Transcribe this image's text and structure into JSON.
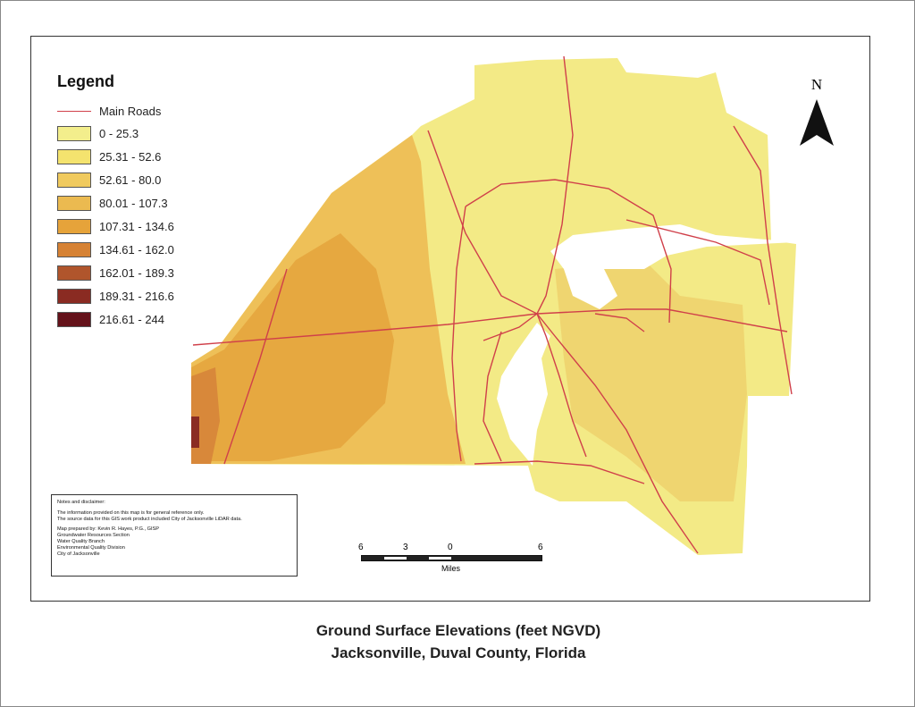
{
  "legend": {
    "title": "Legend",
    "roads_label": "Main Roads",
    "road_color": "#d0404a",
    "classes": [
      {
        "label": "0 - 25.3",
        "color": "#f3ee8c"
      },
      {
        "label": "25.31 - 52.6",
        "color": "#f4e36e"
      },
      {
        "label": "52.61 - 80.0",
        "color": "#f0ca5e"
      },
      {
        "label": "80.01 - 107.3",
        "color": "#ebba50"
      },
      {
        "label": "107.31 - 134.6",
        "color": "#e6a33a"
      },
      {
        "label": "134.61 - 162.0",
        "color": "#d68234"
      },
      {
        "label": "162.01 - 189.3",
        "color": "#b0552c"
      },
      {
        "label": "189.31 - 216.6",
        "color": "#8a2b22"
      },
      {
        "label": "216.61 - 244",
        "color": "#64121a"
      }
    ]
  },
  "notes": {
    "heading": "Notes and disclaimer:",
    "line1": "The information provided on this map is for general reference only.",
    "line2": "The source data for this GIS work product included City of Jacksonville LiDAR data.",
    "prepared": [
      "Map prepared by: Kevin R. Hayes, P.G., GISP",
      "Groundwater Resources Section",
      "Water Quality Branch",
      "Environmental Quality Division",
      "City of Jacksonville"
    ]
  },
  "north_arrow": {
    "label": "N"
  },
  "scale_bar": {
    "ticks": [
      "6",
      "3",
      "0",
      "6"
    ],
    "unit": "Miles"
  },
  "title": {
    "line1": "Ground Surface Elevations (feet NGVD)",
    "line2": "Jacksonville, Duval County, Florida"
  }
}
